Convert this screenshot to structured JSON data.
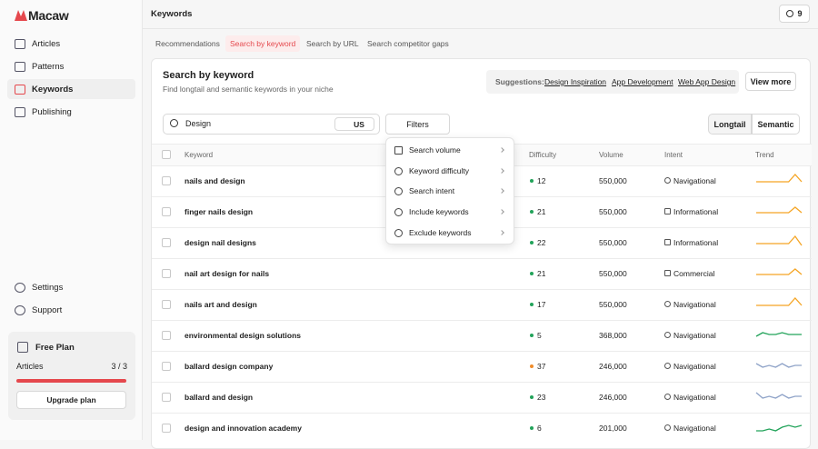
{
  "brand": "Macaw",
  "nav": [
    "Articles",
    "Patterns",
    "Keywords",
    "Publishing"
  ],
  "nav_bottom": [
    "Settings",
    "Support"
  ],
  "plan": {
    "title": "Free Plan",
    "label": "Articles",
    "usage": "3 / 3",
    "button": "Upgrade plan"
  },
  "header": {
    "title": "Keywords",
    "badge": 9
  },
  "tabs": [
    "Recommendations",
    "Search by keyword",
    "Search by URL",
    "Search competitor gaps"
  ],
  "panel": {
    "title": "Search by keyword",
    "subtitle": "Find longtail and semantic keywords in your niche",
    "suggestions_label": "Suggestions:",
    "suggestions": [
      "Design Inspiration",
      "App Development",
      "Web App Design"
    ],
    "view_more": "View more"
  },
  "search": {
    "query": "Design",
    "country": "US",
    "filters": "Filters",
    "modes": [
      "Longtail",
      "Semantic"
    ]
  },
  "filters_menu": [
    "Search volume",
    "Keyword difficulty",
    "Search intent",
    "Include keywords",
    "Exclude keywords"
  ],
  "table": {
    "columns": [
      "Keyword",
      "Difficulty",
      "Volume",
      "Intent",
      "Trend"
    ],
    "rows": [
      {
        "keyword": "nails and design",
        "difficulty": 12,
        "difficulty_color": "#22a35a",
        "volume": "550,000",
        "intent": "Navigational",
        "trend": [
          2,
          2,
          2,
          2,
          2,
          2,
          6,
          2
        ],
        "trend_color": "#f5a524"
      },
      {
        "keyword": "finger nails design",
        "difficulty": 21,
        "difficulty_color": "#22a35a",
        "volume": "550,000",
        "intent": "Informational",
        "trend": [
          2,
          2,
          2,
          2,
          2,
          2,
          5,
          2
        ],
        "trend_color": "#f5a524"
      },
      {
        "keyword": "design nail designs",
        "difficulty": 22,
        "difficulty_color": "#22a35a",
        "volume": "550,000",
        "intent": "Informational",
        "trend": [
          2,
          2,
          2,
          2,
          2,
          2,
          6,
          1
        ],
        "trend_color": "#f5a524"
      },
      {
        "keyword": "nail art design for nails",
        "difficulty": 21,
        "difficulty_color": "#22a35a",
        "volume": "550,000",
        "intent": "Commercial",
        "trend": [
          2,
          2,
          2,
          2,
          2,
          2,
          5,
          2
        ],
        "trend_color": "#f5a524"
      },
      {
        "keyword": "nails art and design",
        "difficulty": 17,
        "difficulty_color": "#22a35a",
        "volume": "550,000",
        "intent": "Navigational",
        "trend": [
          2,
          2,
          2,
          2,
          2,
          2,
          6,
          2
        ],
        "trend_color": "#f5a524"
      },
      {
        "keyword": "environmental design solutions",
        "difficulty": 5,
        "difficulty_color": "#22a35a",
        "volume": "368,000",
        "intent": "Navigational",
        "trend": [
          2,
          4,
          3,
          3,
          4,
          3,
          3,
          3
        ],
        "trend_color": "#22a35a"
      },
      {
        "keyword": "ballard design company",
        "difficulty": 37,
        "difficulty_color": "#f08c2b",
        "volume": "246,000",
        "intent": "Navigational",
        "trend": [
          4,
          2,
          3,
          2,
          4,
          2,
          3,
          3
        ],
        "trend_color": "#8fa3c8"
      },
      {
        "keyword": "ballard and design",
        "difficulty": 23,
        "difficulty_color": "#22a35a",
        "volume": "246,000",
        "intent": "Navigational",
        "trend": [
          5,
          2,
          3,
          2,
          4,
          2,
          3,
          3
        ],
        "trend_color": "#8fa3c8"
      },
      {
        "keyword": "design and innovation academy",
        "difficulty": 6,
        "difficulty_color": "#22a35a",
        "volume": "201,000",
        "intent": "Navigational",
        "trend": [
          1,
          1,
          2,
          1,
          3,
          4,
          3,
          4
        ],
        "trend_color": "#22a35a"
      }
    ]
  }
}
